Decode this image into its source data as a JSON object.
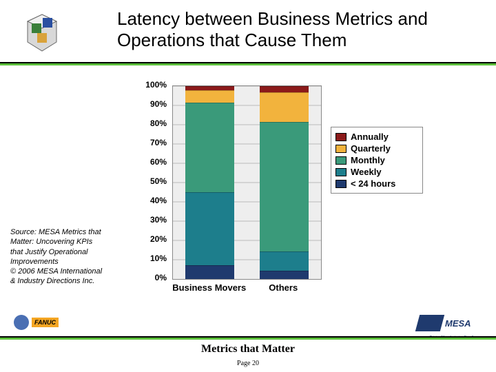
{
  "title": "Latency between Business Metrics and Operations that Cause Them",
  "source_text": "Source: MESA Metrics that Matter: Uncovering KPIs that Justify Operational Improvements\n © 2006 MESA International & Industry Directions Inc.",
  "footer_title": "Metrics that Matter",
  "footer_page": "Page 20",
  "ge_label": "FANUC",
  "mesa_label": "MESA",
  "mesa_sub": "Driving Manufacturing Excellence",
  "chart": {
    "type": "stacked_bar_100pct",
    "background_color": "#eeeeee",
    "grid_color": "#bbbbbb",
    "ylim": [
      0,
      100
    ],
    "ytick_step": 10,
    "ytick_labels": [
      "0%",
      "10%",
      "20%",
      "30%",
      "40%",
      "50%",
      "60%",
      "70%",
      "80%",
      "90%",
      "100%"
    ],
    "categories": [
      "Business Movers",
      "Others"
    ],
    "legend_order": [
      "Annually",
      "Quarterly",
      "Monthly",
      "Weekly",
      "< 24 hours"
    ],
    "stack_order_bottom_up": [
      "< 24 hours",
      "Weekly",
      "Monthly",
      "Quarterly",
      "Annually"
    ],
    "colors": {
      "Annually": "#8b1a1a",
      "Quarterly": "#f2b33d",
      "Monthly": "#3a9a7a",
      "Weekly": "#1d7e8c",
      "< 24 hours": "#1f3a6e"
    },
    "series": {
      "Business Movers": {
        "< 24 hours": 7,
        "Weekly": 38,
        "Monthly": 47,
        "Quarterly": 6,
        "Annually": 2
      },
      "Others": {
        "< 24 hours": 4,
        "Weekly": 10,
        "Monthly": 68,
        "Quarterly": 15,
        "Annually": 3
      }
    },
    "bar_width_pct": 33,
    "label_fontsize": 13,
    "tick_fontsize": 12,
    "font_weight": "bold"
  }
}
